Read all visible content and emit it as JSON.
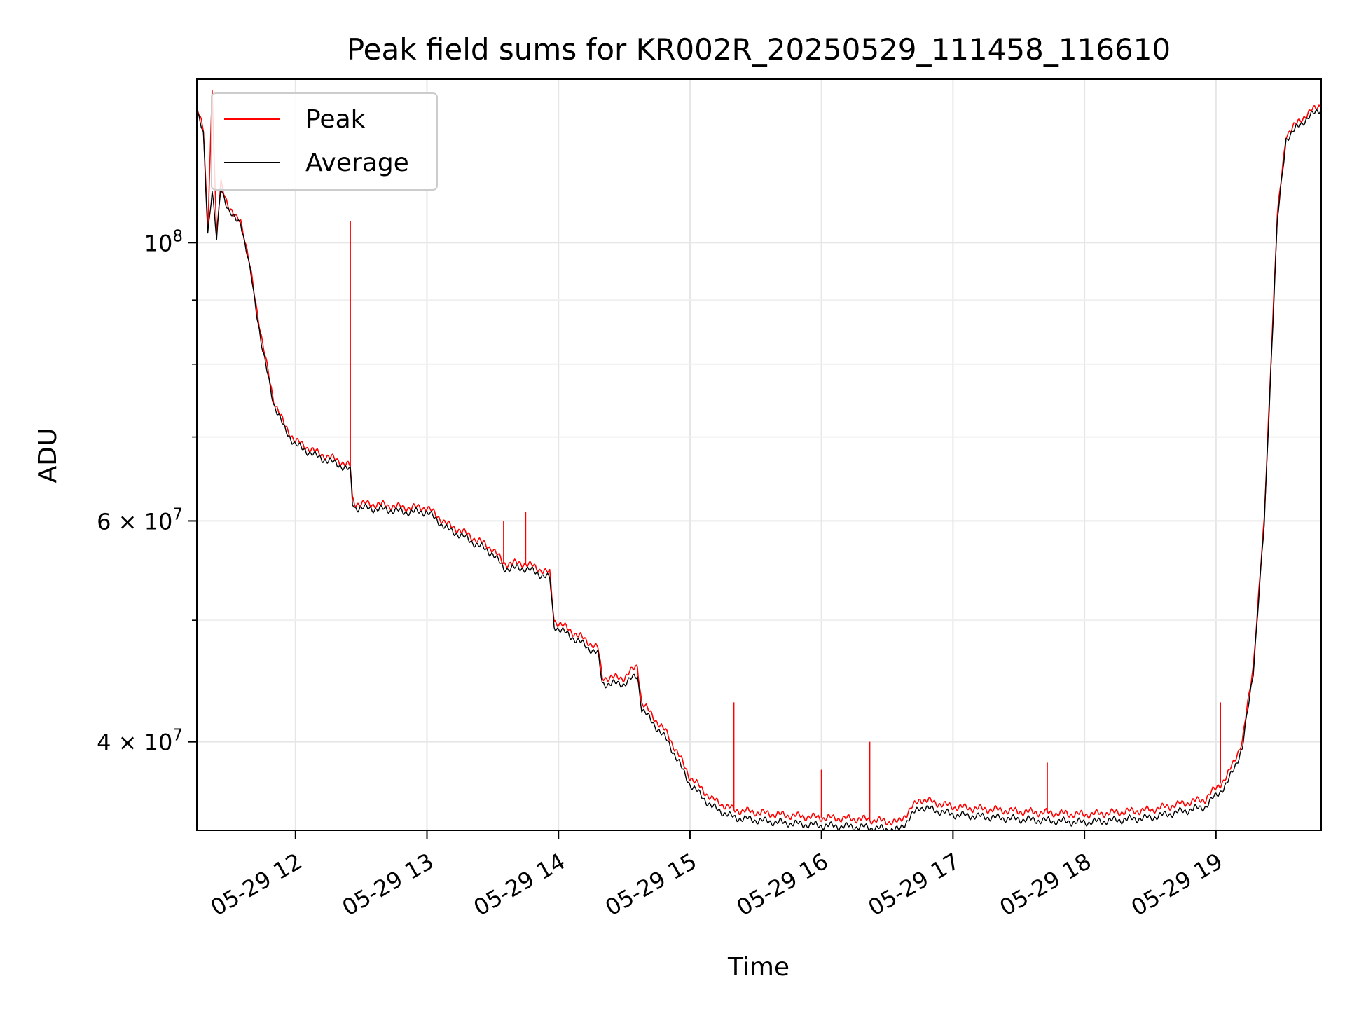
{
  "chart_data": {
    "type": "line",
    "title": "Peak field sums for KR002R_20250529_111458_116610",
    "xlabel": "Time",
    "ylabel": "ADU",
    "x_unit": "hours",
    "xlim": [
      "2025-05-29 11:15",
      "2025-05-29 19:48"
    ],
    "ylim": [
      34000000,
      135000000
    ],
    "yscale": "log",
    "grid": true,
    "legend_position": "upper-left",
    "x_ticks": [
      {
        "value": "2025-05-29 12:00",
        "label": "05-29 12"
      },
      {
        "value": "2025-05-29 13:00",
        "label": "05-29 13"
      },
      {
        "value": "2025-05-29 14:00",
        "label": "05-29 14"
      },
      {
        "value": "2025-05-29 15:00",
        "label": "05-29 15"
      },
      {
        "value": "2025-05-29 16:00",
        "label": "05-29 16"
      },
      {
        "value": "2025-05-29 17:00",
        "label": "05-29 17"
      },
      {
        "value": "2025-05-29 18:00",
        "label": "05-29 18"
      },
      {
        "value": "2025-05-29 19:00",
        "label": "05-29 19"
      }
    ],
    "y_major_ticks": [
      {
        "value": 40000000,
        "mantissa": "4",
        "exponent": "7"
      },
      {
        "value": 60000000,
        "mantissa": "6",
        "exponent": "7"
      },
      {
        "value": 100000000,
        "base": "10",
        "exponent": "8"
      }
    ],
    "y_minor_ticks": [
      50000000,
      70000000,
      80000000,
      90000000
    ],
    "series": [
      {
        "name": "Peak",
        "color": "#ff0000",
        "x": [
          "2025-05-29 11:15",
          "2025-05-29 11:18",
          "2025-05-29 11:20",
          "2025-05-29 11:22",
          "2025-05-29 11:24",
          "2025-05-29 11:26",
          "2025-05-29 11:28",
          "2025-05-29 11:30",
          "2025-05-29 11:32",
          "2025-05-29 11:35",
          "2025-05-29 11:40",
          "2025-05-29 11:45",
          "2025-05-29 11:50",
          "2025-05-29 11:55",
          "2025-05-29 12:00",
          "2025-05-29 12:10",
          "2025-05-29 12:20",
          "2025-05-29 12:25",
          "2025-05-29 12:26",
          "2025-05-29 12:27",
          "2025-05-29 12:40",
          "2025-05-29 12:50",
          "2025-05-29 13:00",
          "2025-05-29 13:10",
          "2025-05-29 13:15",
          "2025-05-29 13:30",
          "2025-05-29 13:35",
          "2025-05-29 13:45",
          "2025-05-29 13:56",
          "2025-05-29 13:58",
          "2025-05-29 14:10",
          "2025-05-29 14:18",
          "2025-05-29 14:20",
          "2025-05-29 14:30",
          "2025-05-29 14:36",
          "2025-05-29 14:38",
          "2025-05-29 14:50",
          "2025-05-29 15:00",
          "2025-05-29 15:10",
          "2025-05-29 15:20",
          "2025-05-29 15:40",
          "2025-05-29 16:00",
          "2025-05-29 16:20",
          "2025-05-29 16:35",
          "2025-05-29 16:45",
          "2025-05-29 17:00",
          "2025-05-29 17:30",
          "2025-05-29 18:00",
          "2025-05-29 18:30",
          "2025-05-29 18:55",
          "2025-05-29 19:05",
          "2025-05-29 19:12",
          "2025-05-29 19:17",
          "2025-05-29 19:22",
          "2025-05-29 19:25",
          "2025-05-29 19:28",
          "2025-05-29 19:32",
          "2025-05-29 19:40",
          "2025-05-29 19:48"
        ],
        "values": [
          128000000,
          123000000,
          103000000,
          132000000,
          101000000,
          112000000,
          109000000,
          106000000,
          105000000,
          104500000,
          94000000,
          83000000,
          75000000,
          71500000,
          69500000,
          68000000,
          67000000,
          66300000,
          62500000,
          62000000,
          61800000,
          61500000,
          61500000,
          59500000,
          59000000,
          57000000,
          55500000,
          55500000,
          54500000,
          50000000,
          48500000,
          47500000,
          45000000,
          45000000,
          46000000,
          43000000,
          40500000,
          37500000,
          36000000,
          35300000,
          35000000,
          34800000,
          34700000,
          34500000,
          36000000,
          35500000,
          35200000,
          35000000,
          35300000,
          36000000,
          37500000,
          40000000,
          46000000,
          60000000,
          80000000,
          105000000,
          122000000,
          126000000,
          129000000
        ]
      },
      {
        "name": "Average",
        "color": "#000000",
        "x": [
          "2025-05-29 11:15",
          "2025-05-29 11:18",
          "2025-05-29 11:20",
          "2025-05-29 11:22",
          "2025-05-29 11:24",
          "2025-05-29 11:26",
          "2025-05-29 11:28",
          "2025-05-29 11:30",
          "2025-05-29 11:32",
          "2025-05-29 11:35",
          "2025-05-29 11:40",
          "2025-05-29 11:45",
          "2025-05-29 11:50",
          "2025-05-29 11:55",
          "2025-05-29 12:00",
          "2025-05-29 12:10",
          "2025-05-29 12:20",
          "2025-05-29 12:25",
          "2025-05-29 12:26",
          "2025-05-29 12:27",
          "2025-05-29 12:40",
          "2025-05-29 12:50",
          "2025-05-29 13:00",
          "2025-05-29 13:10",
          "2025-05-29 13:15",
          "2025-05-29 13:30",
          "2025-05-29 13:35",
          "2025-05-29 13:45",
          "2025-05-29 13:56",
          "2025-05-29 13:58",
          "2025-05-29 14:10",
          "2025-05-29 14:18",
          "2025-05-29 14:20",
          "2025-05-29 14:30",
          "2025-05-29 14:36",
          "2025-05-29 14:38",
          "2025-05-29 14:50",
          "2025-05-29 15:00",
          "2025-05-29 15:10",
          "2025-05-29 15:20",
          "2025-05-29 15:40",
          "2025-05-29 16:00",
          "2025-05-29 16:20",
          "2025-05-29 16:35",
          "2025-05-29 16:45",
          "2025-05-29 17:00",
          "2025-05-29 17:30",
          "2025-05-29 18:00",
          "2025-05-29 18:30",
          "2025-05-29 18:55",
          "2025-05-29 19:05",
          "2025-05-29 19:12",
          "2025-05-29 19:17",
          "2025-05-29 19:22",
          "2025-05-29 19:25",
          "2025-05-29 19:28",
          "2025-05-29 19:32",
          "2025-05-29 19:40",
          "2025-05-29 19:48"
        ],
        "values": [
          127000000,
          122000000,
          102000000,
          110000000,
          100500000,
          111000000,
          108000000,
          105500000,
          104500000,
          104000000,
          93500000,
          82000000,
          74500000,
          71000000,
          69000000,
          67500000,
          66500000,
          65800000,
          62000000,
          61500000,
          61300000,
          61000000,
          61000000,
          59000000,
          58500000,
          56500000,
          55000000,
          55000000,
          54000000,
          49500000,
          48000000,
          47000000,
          44500000,
          44500000,
          45200000,
          42500000,
          40000000,
          37000000,
          35500000,
          34800000,
          34500000,
          34300000,
          34200000,
          34000000,
          35500000,
          35000000,
          34700000,
          34500000,
          34800000,
          35500000,
          37000000,
          39500000,
          45500000,
          59500000,
          79000000,
          104000000,
          121000000,
          125000000,
          128000000
        ]
      }
    ],
    "spikes": [
      {
        "series": "Peak",
        "x": "2025-05-29 12:25",
        "value": 104000000
      },
      {
        "series": "Peak",
        "x": "2025-05-29 13:35",
        "value": 60000000
      },
      {
        "series": "Peak",
        "x": "2025-05-29 13:45",
        "value": 61000000
      },
      {
        "series": "Peak",
        "x": "2025-05-29 15:20",
        "value": 43000000
      },
      {
        "series": "Peak",
        "x": "2025-05-29 16:00",
        "value": 38000000
      },
      {
        "series": "Peak",
        "x": "2025-05-29 16:22",
        "value": 40000000
      },
      {
        "series": "Peak",
        "x": "2025-05-29 17:43",
        "value": 38500000
      },
      {
        "series": "Peak",
        "x": "2025-05-29 19:02",
        "value": 43000000
      }
    ]
  }
}
